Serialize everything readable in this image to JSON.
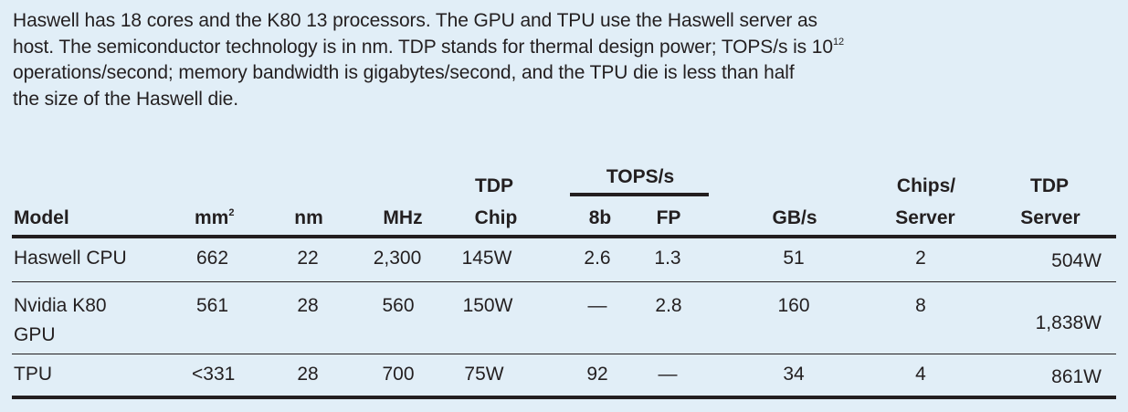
{
  "caption": {
    "lines": [
      "Haswell has 18 cores and the K80 13 processors. The GPU and TPU use the Haswell server as",
      "host. The semiconductor technology is in nm. TDP stands for thermal design power; TOPS/s is 10",
      "operations/second; memory bandwidth is gigabytes/second, and the TPU die is less than half",
      "the size of the Haswell die."
    ],
    "superscript": "12"
  },
  "table": {
    "headers": {
      "model": "Model",
      "mm2_base": "mm",
      "mm2_sup": "2",
      "nm": "nm",
      "mhz": "MHz",
      "tdp_chip_top": "TDP",
      "tdp_chip_bottom": "Chip",
      "tops_group": "TOPS/s",
      "tops_8b": "8b",
      "tops_fp": "FP",
      "gbs": "GB/s",
      "chips_top": "Chips/",
      "chips_bottom": "Server",
      "tdp_server_top": "TDP",
      "tdp_server_bottom": "Server"
    },
    "rows": [
      {
        "model": "Haswell CPU",
        "mm2": "662",
        "nm": "22",
        "mhz": "2,300",
        "tdp_chip": "145W",
        "tops_8b": "2.6",
        "tops_fp": "1.3",
        "gbs": "51",
        "chips": "2",
        "tdp_server": "504W"
      },
      {
        "model": "Nvidia K80",
        "model_line2": "GPU",
        "mm2": "561",
        "nm": "28",
        "mhz": "560",
        "tdp_chip": "150W",
        "tops_8b": "—",
        "tops_fp": "2.8",
        "gbs": "160",
        "chips": "8",
        "tdp_server": "1,838W"
      },
      {
        "model": "TPU",
        "mm2": "<331",
        "nm": "28",
        "mhz": "700",
        "tdp_chip": "75W",
        "tops_8b": "92",
        "tops_fp": "—",
        "gbs": "34",
        "chips": "4",
        "tdp_server": "861W"
      }
    ]
  }
}
